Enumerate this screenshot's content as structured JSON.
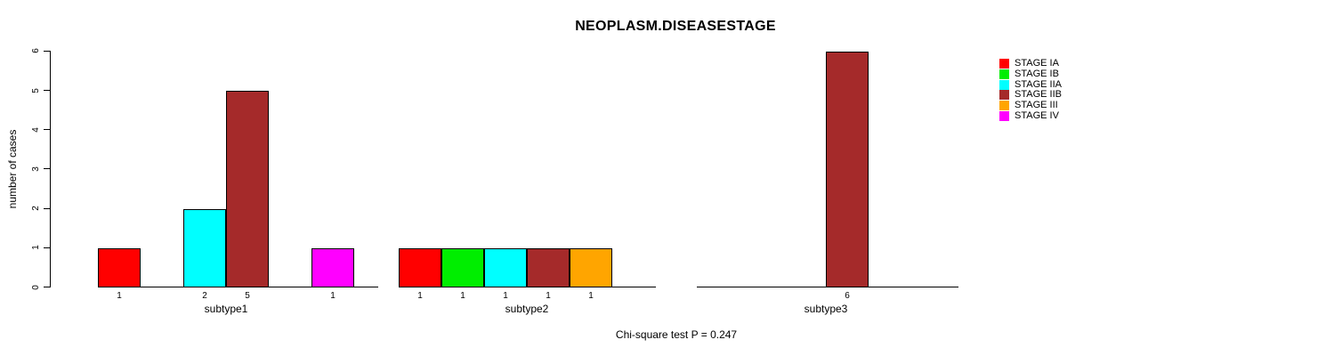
{
  "title": "NEOPLASM.DISEASESTAGE",
  "caption": "Chi-square test P = 0.247",
  "chart_data": {
    "type": "bar",
    "title": "NEOPLASM.DISEASESTAGE",
    "xlabel": "",
    "ylabel": "number of cases",
    "ylim": [
      0,
      6
    ],
    "yticks": [
      0,
      1,
      2,
      3,
      4,
      5,
      6
    ],
    "grid": false,
    "legend_position": "right",
    "categories": [
      "STAGE IA",
      "STAGE IB",
      "STAGE IIA",
      "STAGE IIB",
      "STAGE III",
      "STAGE IV"
    ],
    "legend": [
      {
        "label": "STAGE IA",
        "color": "#FF0000"
      },
      {
        "label": "STAGE IB",
        "color": "#00EE00"
      },
      {
        "label": "STAGE IIA",
        "color": "#00FFFF"
      },
      {
        "label": "STAGE IIB",
        "color": "#A52A2A"
      },
      {
        "label": "STAGE III",
        "color": "#FFA500"
      },
      {
        "label": "STAGE IV",
        "color": "#FF00FF"
      }
    ],
    "series": [
      {
        "name": "subtype1",
        "values": [
          1,
          0,
          2,
          5,
          0,
          1
        ],
        "bar_labels": [
          "1",
          "",
          "2",
          "5",
          "",
          "1"
        ]
      },
      {
        "name": "subtype2",
        "values": [
          1,
          1,
          1,
          1,
          1,
          0
        ],
        "bar_labels": [
          "1",
          "1",
          "1",
          "1",
          "1",
          ""
        ]
      },
      {
        "name": "subtype3",
        "values": [
          0,
          0,
          0,
          6,
          0,
          0
        ],
        "bar_labels": [
          "",
          "",
          "",
          "6",
          "",
          ""
        ]
      }
    ],
    "annotation": "Chi-square test P = 0.247"
  }
}
